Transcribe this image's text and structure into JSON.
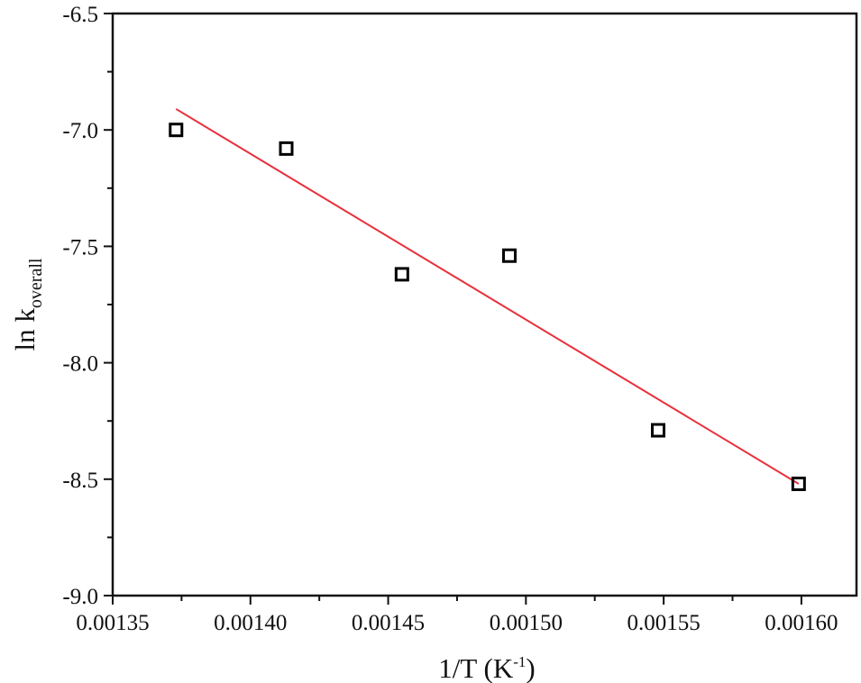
{
  "chart_data": {
    "type": "scatter",
    "x_axis": {
      "title_main": "1/T (K",
      "title_sup": "-1",
      "title_end": ")",
      "ticks": [
        0.00135,
        0.0014,
        0.00145,
        0.0015,
        0.00155,
        0.0016
      ],
      "tick_labels": [
        "0.00135",
        "0.00140",
        "0.00145",
        "0.00150",
        "0.00155",
        "0.00160"
      ],
      "range": [
        0.00135,
        0.00162
      ]
    },
    "y_axis": {
      "title_main": "ln k",
      "title_sub": "overall",
      "ticks": [
        -6.5,
        -7.0,
        -7.5,
        -8.0,
        -8.5,
        -9.0
      ],
      "tick_labels": [
        "-6.5",
        "-7.0",
        "-7.5",
        "-8.0",
        "-8.5",
        "-9.0"
      ],
      "range": [
        -9.0,
        -6.5
      ]
    },
    "series": [
      {
        "marker": "open-square",
        "color": "#000000",
        "points": [
          {
            "x": 0.001373,
            "y": -7.0
          },
          {
            "x": 0.001413,
            "y": -7.08
          },
          {
            "x": 0.001455,
            "y": -7.62
          },
          {
            "x": 0.001494,
            "y": -7.54
          },
          {
            "x": 0.001548,
            "y": -8.29
          },
          {
            "x": 0.001599,
            "y": -8.52
          }
        ]
      }
    ],
    "fit_line": {
      "color": "#e8313c",
      "x": [
        0.001373,
        0.001599
      ],
      "y": [
        -6.91,
        -8.52
      ]
    },
    "grid": false,
    "legend": "none"
  }
}
